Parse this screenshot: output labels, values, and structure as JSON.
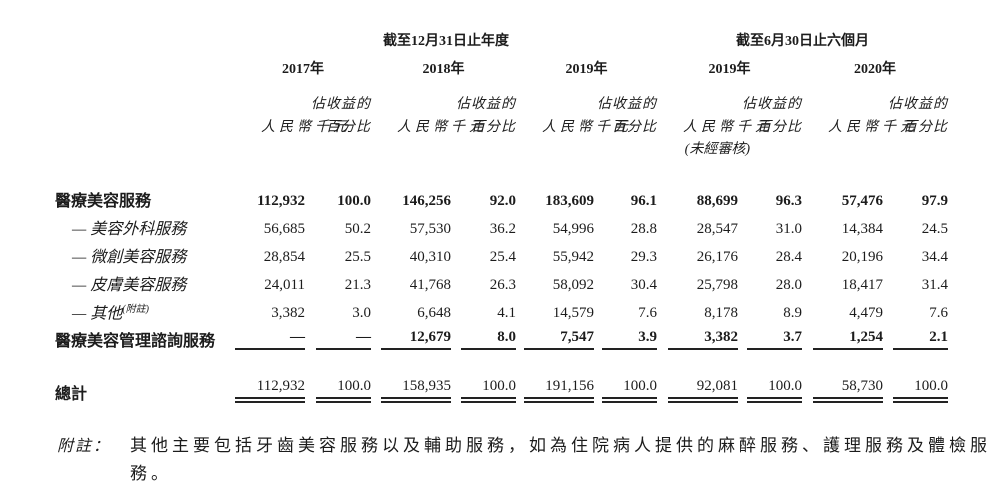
{
  "page": {
    "background_color": "#ffffff",
    "text_color": "#1c1c1c"
  },
  "table": {
    "period_annual": "截至12月31日止年度",
    "period_interim": "截至6月30日止六個月",
    "years": [
      "2017年",
      "2018年",
      "2019年",
      "2019年",
      "2020年"
    ],
    "share_label": "佔收益的",
    "pct_label": "百分比",
    "rmb_label": "人民幣千元",
    "unaudited_label": "(未經審核)",
    "rows": [
      {
        "type": "group",
        "label": "醫療美容服務",
        "values": [
          "112,932",
          "100.0",
          "146,256",
          "92.0",
          "183,609",
          "96.1",
          "88,699",
          "96.3",
          "57,476",
          "97.9"
        ]
      },
      {
        "type": "sub",
        "label": "— 美容外科服務",
        "values": [
          "56,685",
          "50.2",
          "57,530",
          "36.2",
          "54,996",
          "28.8",
          "28,547",
          "31.0",
          "14,384",
          "24.5"
        ]
      },
      {
        "type": "sub",
        "label": "— 微創美容服務",
        "values": [
          "28,854",
          "25.5",
          "40,310",
          "25.4",
          "55,942",
          "29.3",
          "26,176",
          "28.4",
          "20,196",
          "34.4"
        ]
      },
      {
        "type": "sub",
        "label": "— 皮膚美容服務",
        "values": [
          "24,011",
          "21.3",
          "41,768",
          "26.3",
          "58,092",
          "30.4",
          "25,798",
          "28.0",
          "18,417",
          "31.4"
        ]
      },
      {
        "type": "sub",
        "label": "— 其他",
        "sup": "(附註)",
        "values": [
          "3,382",
          "3.0",
          "6,648",
          "4.1",
          "14,579",
          "7.6",
          "8,178",
          "8.9",
          "4,479",
          "7.6"
        ]
      },
      {
        "type": "subtotal",
        "label": "醫療美容管理諮詢服務",
        "values": [
          "—",
          "—",
          "12,679",
          "8.0",
          "7,547",
          "3.9",
          "3,382",
          "3.7",
          "1,254",
          "2.1"
        ]
      },
      {
        "type": "total",
        "label": "總計",
        "values": [
          "112,932",
          "100.0",
          "158,935",
          "100.0",
          "191,156",
          "100.0",
          "92,081",
          "100.0",
          "58,730",
          "100.0"
        ]
      }
    ]
  },
  "footnote": {
    "label": "附註：",
    "lines": [
      "其他主要包括牙齒美容服務以及輔助服務，如為住院病人提供的麻醉服務、護理服務及體檢服",
      "務。"
    ]
  }
}
